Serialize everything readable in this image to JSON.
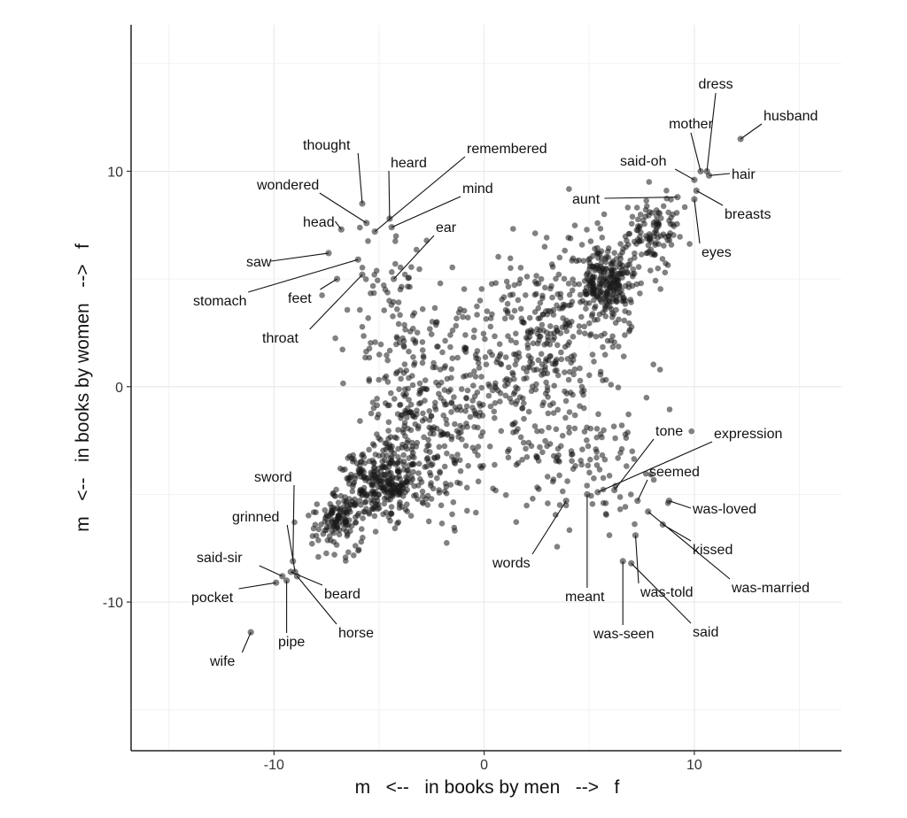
{
  "chart_data": {
    "type": "scatter",
    "title": "",
    "xlabel": "m   <--   in books by men   -->   f",
    "ylabel": "m   <--   in books by women   -->   f",
    "xlim": [
      -16.8,
      17
    ],
    "ylim": [
      -16.9,
      16.8
    ],
    "x_ticks": [
      -10,
      0,
      10
    ],
    "y_ticks": [
      -10,
      0,
      10
    ],
    "x_tick_labels": [
      "-10",
      "0",
      "10"
    ],
    "y_tick_labels": [
      "-10",
      "0",
      "10"
    ],
    "grid": true,
    "labeled_points": [
      {
        "label": "dress",
        "x": 10.6,
        "y": 10.0
      },
      {
        "label": "husband",
        "x": 12.2,
        "y": 11.5
      },
      {
        "label": "mother",
        "x": 10.3,
        "y": 10.0
      },
      {
        "label": "said-oh",
        "x": 10.0,
        "y": 9.6
      },
      {
        "label": "hair",
        "x": 10.7,
        "y": 9.8
      },
      {
        "label": "aunt",
        "x": 9.2,
        "y": 8.8
      },
      {
        "label": "breasts",
        "x": 10.1,
        "y": 9.1
      },
      {
        "label": "eyes",
        "x": 10.0,
        "y": 8.7
      },
      {
        "label": "thought",
        "x": -5.8,
        "y": 8.5
      },
      {
        "label": "heard",
        "x": -4.5,
        "y": 7.8
      },
      {
        "label": "remembered",
        "x": -5.2,
        "y": 7.2
      },
      {
        "label": "mind",
        "x": -4.4,
        "y": 7.4
      },
      {
        "label": "wondered",
        "x": -5.6,
        "y": 7.6
      },
      {
        "label": "head",
        "x": -6.8,
        "y": 7.3
      },
      {
        "label": "ear",
        "x": -4.3,
        "y": 5.0
      },
      {
        "label": "saw",
        "x": -7.4,
        "y": 6.2
      },
      {
        "label": "stomach",
        "x": -6.0,
        "y": 5.9
      },
      {
        "label": "feet",
        "x": -7.0,
        "y": 5.0
      },
      {
        "label": "throat",
        "x": -5.8,
        "y": 5.2
      },
      {
        "label": "tone",
        "x": 6.2,
        "y": -4.8
      },
      {
        "label": "expression",
        "x": 5.4,
        "y": -4.9
      },
      {
        "label": "seemed",
        "x": 7.3,
        "y": -5.3
      },
      {
        "label": "was-loved",
        "x": 8.8,
        "y": -5.3
      },
      {
        "label": "kissed",
        "x": 8.5,
        "y": -6.4
      },
      {
        "label": "was-married",
        "x": 7.8,
        "y": -5.8
      },
      {
        "label": "words",
        "x": 3.9,
        "y": -5.3
      },
      {
        "label": "meant",
        "x": 4.9,
        "y": -5.0
      },
      {
        "label": "was-told",
        "x": 7.2,
        "y": -6.9
      },
      {
        "label": "said",
        "x": 7.0,
        "y": -8.2
      },
      {
        "label": "was-seen",
        "x": 6.6,
        "y": -8.1
      },
      {
        "label": "sword",
        "x": -9.1,
        "y": -8.1
      },
      {
        "label": "grinned",
        "x": -9.0,
        "y": -8.6
      },
      {
        "label": "said-sir",
        "x": -9.6,
        "y": -8.8
      },
      {
        "label": "beard",
        "x": -9.2,
        "y": -8.6
      },
      {
        "label": "pocket",
        "x": -9.9,
        "y": -9.1
      },
      {
        "label": "horse",
        "x": -8.9,
        "y": -8.8
      },
      {
        "label": "pipe",
        "x": -9.4,
        "y": -9.0
      },
      {
        "label": "wife",
        "x": -11.1,
        "y": -11.4
      }
    ],
    "clusters": [
      {
        "region": "upper-right diagonal",
        "center": [
          5.7,
          4.9
        ],
        "spread": [
          0.8,
          1.0
        ],
        "count": 260
      },
      {
        "region": "upper-right tail",
        "center": [
          8.0,
          7.2
        ],
        "spread": [
          0.7,
          0.9
        ],
        "count": 110
      },
      {
        "region": "upper-right broad",
        "center": [
          3.0,
          2.0
        ],
        "spread": [
          1.6,
          2.2
        ],
        "count": 280
      },
      {
        "region": "lower-left diagonal",
        "center": [
          -4.8,
          -4.5
        ],
        "spread": [
          0.9,
          0.8
        ],
        "count": 300
      },
      {
        "region": "lower-left tail",
        "center": [
          -6.9,
          -6.3
        ],
        "spread": [
          0.7,
          0.7
        ],
        "count": 130
      },
      {
        "region": "lower-left broad",
        "center": [
          -2.8,
          -1.6
        ],
        "spread": [
          1.4,
          2.0
        ],
        "count": 240
      },
      {
        "region": "center",
        "center": [
          0.0,
          0.0
        ],
        "spread": [
          2.6,
          2.8
        ],
        "count": 200
      },
      {
        "region": "upper-left",
        "center": [
          -4.2,
          3.2
        ],
        "spread": [
          1.2,
          1.8
        ],
        "count": 70
      },
      {
        "region": "lower-right",
        "center": [
          5.0,
          -3.4
        ],
        "spread": [
          1.5,
          1.3
        ],
        "count": 90
      }
    ]
  }
}
